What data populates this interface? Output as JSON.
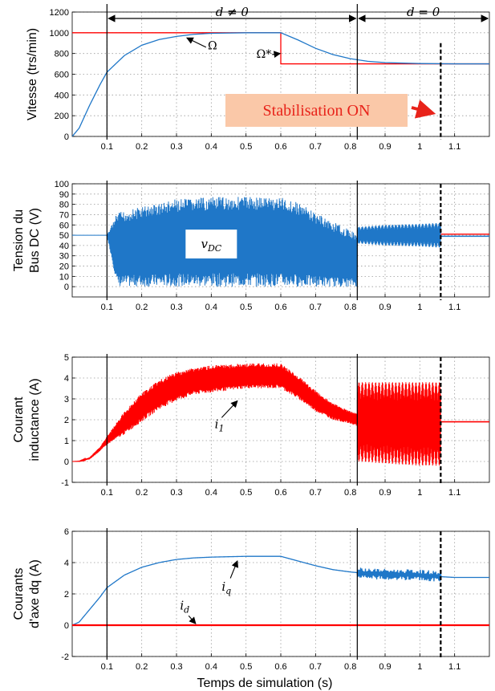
{
  "chart_data": [
    {
      "type": "line",
      "ylabel": "Vitesse (trs/min)",
      "xlim": [
        0,
        1.2
      ],
      "ylim": [
        0,
        1200
      ],
      "yticks": [
        0,
        200,
        400,
        600,
        800,
        1000,
        1200
      ],
      "xticks": [
        0.1,
        0.2,
        0.3,
        0.4,
        0.5,
        0.6,
        0.7,
        0.8,
        0.9,
        1,
        1.1
      ],
      "xtick_labels": [
        "0.1",
        "0.2",
        "0.3",
        "0.4",
        "0.5",
        "0.6",
        "0.7",
        "0.8",
        "0.9",
        "1",
        "1.1"
      ],
      "grid": true,
      "series": [
        {
          "name": "Ω*",
          "color": "#ff0000",
          "x": [
            0,
            0.6,
            0.6,
            1.2
          ],
          "y": [
            1000,
            1000,
            700,
            700
          ]
        },
        {
          "name": "Ω",
          "color": "#1f77c8",
          "x": [
            0,
            0.02,
            0.05,
            0.08,
            0.1,
            0.15,
            0.2,
            0.25,
            0.3,
            0.35,
            0.4,
            0.5,
            0.6,
            0.65,
            0.7,
            0.75,
            0.8,
            0.85,
            0.9,
            1.0,
            1.1,
            1.2
          ],
          "y": [
            0,
            80,
            300,
            500,
            620,
            780,
            880,
            935,
            965,
            985,
            995,
            1000,
            1000,
            930,
            850,
            790,
            750,
            725,
            712,
            703,
            700,
            700
          ]
        }
      ],
      "annotations": [
        "Ω",
        "Ω*"
      ],
      "banner": "Stabilisation ON",
      "region_labels": [
        "d ≠ 0",
        "d = 0"
      ]
    },
    {
      "type": "line",
      "ylabel_lines": [
        "Tension du",
        "Bus DC (V)"
      ],
      "xlim": [
        0,
        1.2
      ],
      "ylim": [
        -10,
        100
      ],
      "yticks": [
        0,
        10,
        20,
        30,
        40,
        50,
        60,
        70,
        80,
        90,
        100
      ],
      "xticks": [
        0.1,
        0.2,
        0.3,
        0.4,
        0.5,
        0.6,
        0.7,
        0.8,
        0.9,
        1,
        1.1
      ],
      "xtick_labels": [
        "0.1",
        "0.2",
        "0.3",
        "0.4",
        "0.5",
        "0.6",
        "0.7",
        "0.8",
        "0.9",
        "1",
        "1.1"
      ],
      "grid": true,
      "series": [
        {
          "name": "vDC",
          "color": "#1f77c8",
          "envelope_x": [
            0,
            0.1,
            0.13,
            0.2,
            0.3,
            0.4,
            0.5,
            0.6,
            0.65,
            0.7,
            0.75,
            0.8,
            0.82
          ],
          "envelope_upper": [
            50,
            50,
            72,
            78,
            85,
            87,
            88,
            87,
            82,
            72,
            63,
            55,
            52
          ],
          "envelope_lower": [
            50,
            50,
            0,
            0,
            0,
            0,
            0,
            0,
            0,
            0,
            0,
            0,
            0
          ],
          "osc_x": [
            0.82,
            0.9,
            1.0,
            1.06
          ],
          "osc_upper": [
            58,
            60,
            61,
            62
          ],
          "osc_lower": [
            42,
            40,
            39,
            38
          ],
          "steady_x": [
            1.06,
            1.2
          ],
          "steady_y": 49
        },
        {
          "name": "reference",
          "color": "#ff0000",
          "x": [
            1.06,
            1.2
          ],
          "y": [
            51,
            51
          ]
        }
      ],
      "annotations": [
        "vDC"
      ]
    },
    {
      "type": "line",
      "ylabel_lines": [
        "Courant",
        "inductance (A)"
      ],
      "xlim": [
        0,
        1.2
      ],
      "ylim": [
        -1,
        5
      ],
      "yticks": [
        -1,
        0,
        1,
        2,
        3,
        4,
        5
      ],
      "xticks": [
        0.1,
        0.2,
        0.3,
        0.4,
        0.5,
        0.6,
        0.7,
        0.8,
        0.9,
        1,
        1.1
      ],
      "xtick_labels": [
        "0.1",
        "0.2",
        "0.3",
        "0.4",
        "0.5",
        "0.6",
        "0.7",
        "0.8",
        "0.9",
        "1",
        "1.1"
      ],
      "grid": true,
      "series": [
        {
          "name": "i1",
          "color": "#ff0000",
          "envelope_x": [
            0,
            0.02,
            0.05,
            0.08,
            0.1,
            0.15,
            0.2,
            0.25,
            0.3,
            0.35,
            0.4,
            0.5,
            0.6,
            0.65,
            0.7,
            0.75,
            0.8,
            0.82
          ],
          "envelope_upper": [
            0,
            0.02,
            0.2,
            0.7,
            1.2,
            2.4,
            3.3,
            3.9,
            4.3,
            4.5,
            4.6,
            4.7,
            4.7,
            4.1,
            3.4,
            2.8,
            2.4,
            2.3
          ],
          "envelope_lower": [
            0,
            0.0,
            0.1,
            0.5,
            0.8,
            1.3,
            1.9,
            2.5,
            2.9,
            3.2,
            3.3,
            3.5,
            3.5,
            3.0,
            2.4,
            2.0,
            1.8,
            1.7
          ],
          "osc_x": [
            0.82,
            0.9,
            1.0,
            1.06
          ],
          "osc_upper": [
            3.8,
            3.8,
            3.8,
            3.8
          ],
          "osc_lower": [
            0.0,
            -0.1,
            -0.2,
            -0.2
          ],
          "steady_x": [
            1.06,
            1.2
          ],
          "steady_y": 1.9
        }
      ],
      "annotations": [
        "i1"
      ]
    },
    {
      "type": "line",
      "ylabel_lines": [
        "Courants",
        "d'axe dq (A)"
      ],
      "xlim": [
        0,
        1.2
      ],
      "ylim": [
        -2,
        6
      ],
      "yticks": [
        -2,
        0,
        2,
        4,
        6
      ],
      "xticks": [
        0.1,
        0.2,
        0.3,
        0.4,
        0.5,
        0.6,
        0.7,
        0.8,
        0.9,
        1,
        1.1
      ],
      "xtick_labels": [
        "0.1",
        "0.2",
        "0.3",
        "0.4",
        "0.5",
        "0.6",
        "0.7",
        "0.8",
        "0.9",
        "1",
        "1.1"
      ],
      "xlabel": "Temps de simulation (s)",
      "grid": true,
      "series": [
        {
          "name": "iq",
          "color": "#1f77c8",
          "x": [
            0,
            0.02,
            0.05,
            0.08,
            0.1,
            0.15,
            0.2,
            0.25,
            0.3,
            0.35,
            0.4,
            0.5,
            0.6,
            0.65,
            0.7,
            0.75,
            0.8,
            0.85,
            0.9,
            1.0,
            1.06,
            1.1,
            1.2
          ],
          "y": [
            0,
            0.2,
            1.0,
            1.8,
            2.4,
            3.2,
            3.7,
            4.0,
            4.2,
            4.3,
            4.35,
            4.4,
            4.4,
            4.1,
            3.8,
            3.55,
            3.4,
            3.3,
            3.25,
            3.2,
            3.1,
            3.05,
            3.05
          ],
          "noise_x": [
            0.82,
            1.06
          ],
          "noise_amp": 0.35
        },
        {
          "name": "id",
          "color": "#ff0000",
          "x": [
            0,
            1.2
          ],
          "y": [
            0,
            0
          ]
        }
      ],
      "annotations": [
        "iq",
        "id"
      ]
    }
  ],
  "markers": {
    "solid_vlines_x": [
      0.1,
      0.82
    ],
    "dashed_vline_x": 1.06
  },
  "colors": {
    "blue": "#1f77c8",
    "red": "#ff0000",
    "banner_fill": "#fac8a8",
    "banner_text": "#e8231a"
  }
}
